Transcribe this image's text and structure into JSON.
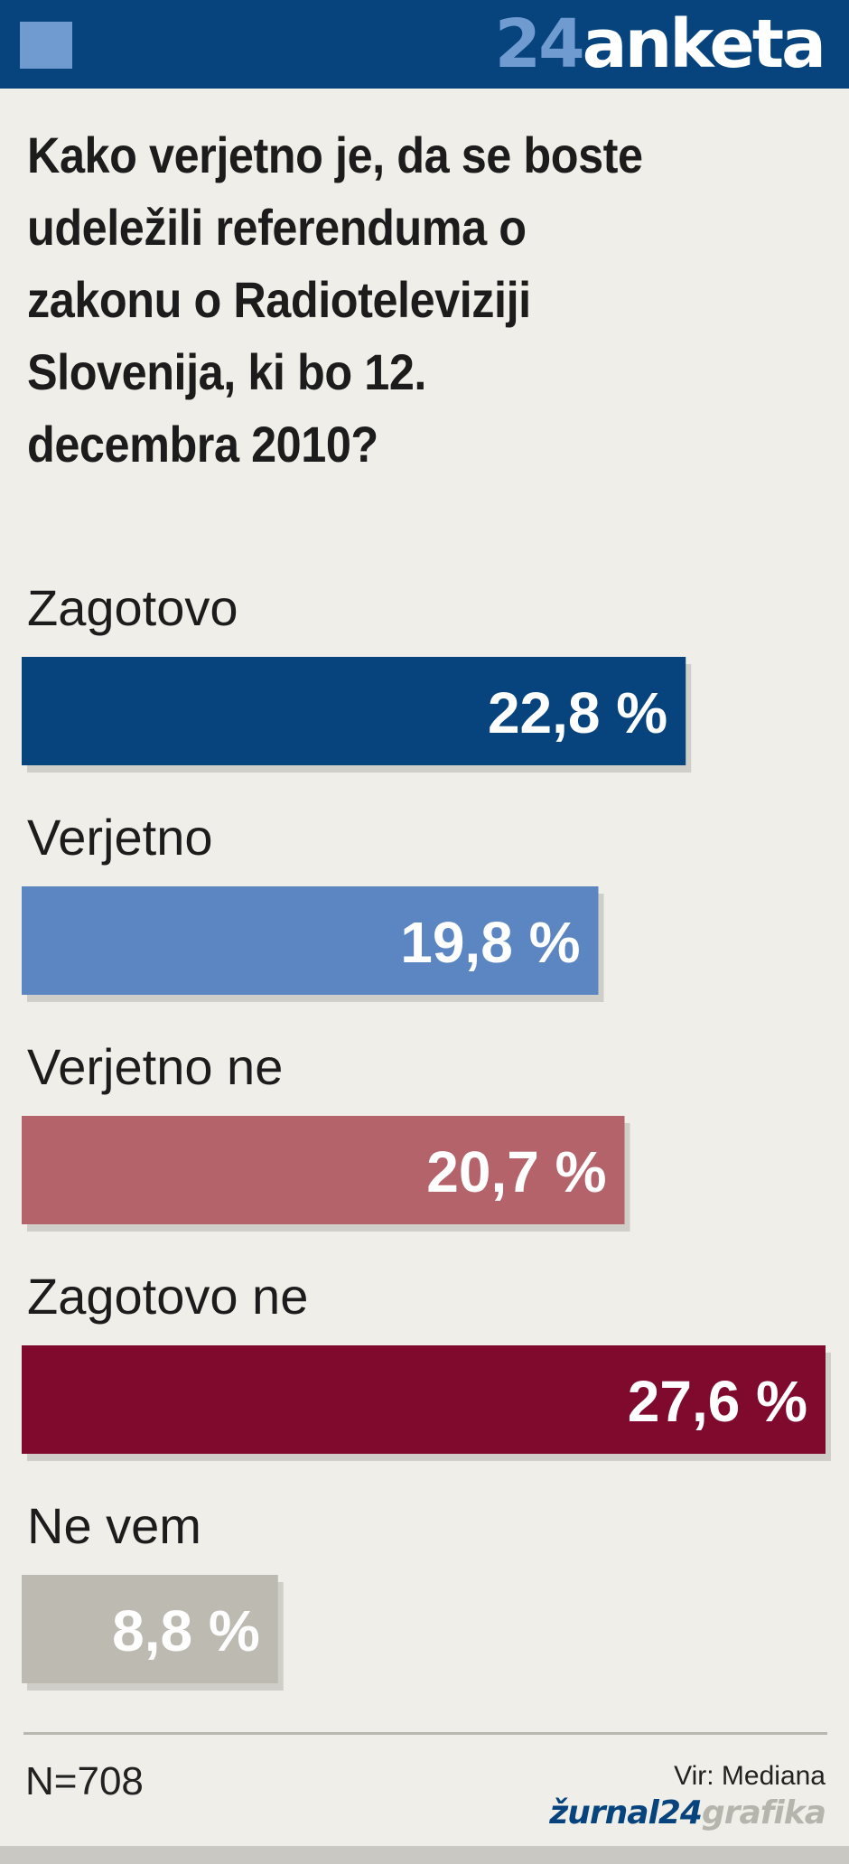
{
  "header": {
    "brand_number": "24",
    "brand_word": "anketa"
  },
  "question_lines": [
    "Kako verjetno je, da se boste",
    "udeležili referenduma o",
    "zakonu o Radioteleviziji",
    "Slovenija, ki bo 12.",
    "decembra 2010?"
  ],
  "chart_data": {
    "type": "bar",
    "orientation": "horizontal",
    "categories": [
      "Zagotovo",
      "Verjetno",
      "Verjetno ne",
      "Zagotovo ne",
      "Ne vem"
    ],
    "values": [
      22.8,
      19.8,
      20.7,
      27.6,
      8.8
    ],
    "value_labels": [
      "22,8 %",
      "19,8 %",
      "20,7 %",
      "27,6 %",
      "8,8 %"
    ],
    "colors": [
      "#07447e",
      "#5b86c1",
      "#b5636b",
      "#800a2e",
      "#bdbab2"
    ],
    "xlim": [
      0,
      27.6
    ]
  },
  "footer": {
    "sample": "N=708",
    "source": "Vir: Mediana",
    "credit_part1": "žurnal24",
    "credit_part2": "grafika"
  }
}
